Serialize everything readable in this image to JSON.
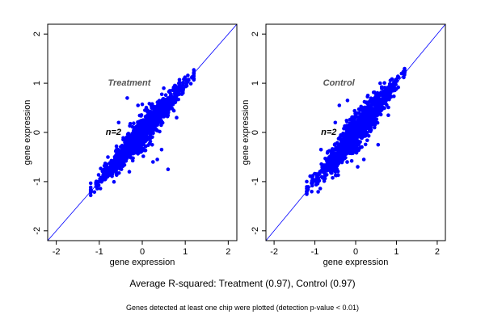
{
  "figure": {
    "summary": "Average R-squared: Treatment (0.97), Control (0.97)",
    "footnote": "Genes detected at least one chip were plotted (detection p-value < 0.01)"
  },
  "chart_data": [
    {
      "type": "scatter",
      "title": "Treatment",
      "annotation": "n=2",
      "xlabel": "gene expression",
      "ylabel": "gene expression",
      "xlim": [
        -2.2,
        2.2
      ],
      "ylim": [
        -2.2,
        2.2
      ],
      "xticks": [
        -2,
        -1,
        0,
        1,
        2
      ],
      "yticks": [
        -2,
        -1,
        0,
        1,
        2
      ],
      "reference_line": "y = x",
      "point_color": "#0000ff",
      "line_color": "#0000ff",
      "cloud": {
        "x_min": -1.2,
        "x_max": 1.2,
        "center": [
          0,
          0
        ],
        "slope": 1.0,
        "spread": 0.18
      },
      "outliers": [
        [
          0.35,
          -0.55
        ],
        [
          0.6,
          -0.75
        ],
        [
          -0.35,
          0.7
        ],
        [
          0.5,
          0.9
        ],
        [
          0.25,
          -0.6
        ],
        [
          -0.3,
          -0.8
        ],
        [
          0.45,
          -0.35
        ],
        [
          -0.55,
          0.2
        ],
        [
          0.8,
          0.3
        ],
        [
          -0.1,
          0.55
        ]
      ]
    },
    {
      "type": "scatter",
      "title": "Control",
      "annotation": "n=2",
      "xlabel": "gene expression",
      "ylabel": "gene expression",
      "xlim": [
        -2.2,
        2.2
      ],
      "ylim": [
        -2.2,
        2.2
      ],
      "xticks": [
        -2,
        -1,
        0,
        1,
        2
      ],
      "yticks": [
        -2,
        -1,
        0,
        1,
        2
      ],
      "reference_line": "y = x",
      "point_color": "#0000ff",
      "line_color": "#0000ff",
      "cloud": {
        "x_min": -1.2,
        "x_max": 1.2,
        "center": [
          0,
          0
        ],
        "slope": 1.0,
        "spread": 0.2
      },
      "outliers": [
        [
          -0.5,
          0.2
        ],
        [
          0.05,
          -0.7
        ],
        [
          -0.4,
          0.55
        ],
        [
          0.55,
          -0.25
        ],
        [
          0.3,
          0.75
        ],
        [
          -0.85,
          -0.35
        ],
        [
          0.8,
          0.35
        ],
        [
          0.2,
          -0.55
        ],
        [
          -0.2,
          0.65
        ],
        [
          0.6,
          1.0
        ]
      ]
    }
  ]
}
